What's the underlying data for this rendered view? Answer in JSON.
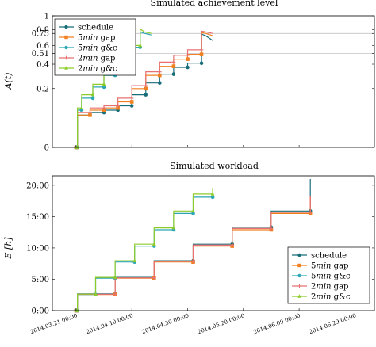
{
  "chart_data": [
    {
      "type": "line",
      "title": "Simulated achievement level",
      "ylabel": "A(t)",
      "ylim": [
        0,
        1
      ],
      "yscale": "sqrt",
      "yticks": [
        "0",
        "0.2",
        "0.4",
        "0.51",
        "0.6",
        "0.75",
        "0.8",
        "1"
      ],
      "ytick_values": [
        0,
        0.2,
        0.4,
        0.51,
        0.6,
        0.75,
        0.8,
        1
      ],
      "reference_lines": [
        0.51,
        0.75
      ],
      "grid": false,
      "legend": "top-left",
      "series": [
        {
          "name": "schedule",
          "color": "#1a6e7a",
          "marker": "circle",
          "points": [
            [
              0.0,
              0
            ],
            [
              0.5,
              0
            ],
            [
              0.5,
              0.06
            ],
            [
              5.0,
              0.06
            ],
            [
              5.0,
              0.07
            ],
            [
              10.0,
              0.07
            ],
            [
              10.0,
              0.08
            ],
            [
              15.0,
              0.08
            ],
            [
              15.0,
              0.1
            ],
            [
              20.0,
              0.1
            ],
            [
              20.0,
              0.16
            ],
            [
              25.0,
              0.16
            ],
            [
              25.0,
              0.24
            ],
            [
              30.0,
              0.24
            ],
            [
              30.0,
              0.31
            ],
            [
              35.0,
              0.31
            ],
            [
              35.0,
              0.37
            ],
            [
              40.0,
              0.37
            ],
            [
              40.0,
              0.41
            ],
            [
              45.0,
              0.41
            ],
            [
              45.0,
              0.74
            ],
            [
              46.5,
              0.72
            ],
            [
              49.0,
              0.66
            ]
          ]
        },
        {
          "name": "5min gap",
          "color": "#f08020",
          "marker": "square",
          "points": [
            [
              0.0,
              0
            ],
            [
              0.5,
              0
            ],
            [
              0.5,
              0.06
            ],
            [
              5.0,
              0.06
            ],
            [
              5.0,
              0.08
            ],
            [
              10.0,
              0.08
            ],
            [
              10.0,
              0.09
            ],
            [
              15.0,
              0.09
            ],
            [
              15.0,
              0.12
            ],
            [
              20.0,
              0.12
            ],
            [
              20.0,
              0.2
            ],
            [
              25.0,
              0.2
            ],
            [
              25.0,
              0.3
            ],
            [
              30.0,
              0.3
            ],
            [
              30.0,
              0.38
            ],
            [
              35.0,
              0.38
            ],
            [
              35.0,
              0.45
            ],
            [
              40.0,
              0.45
            ],
            [
              40.0,
              0.5
            ],
            [
              45.0,
              0.5
            ],
            [
              45.0,
              0.76
            ],
            [
              46.5,
              0.75
            ],
            [
              49.0,
              0.72
            ]
          ]
        },
        {
          "name": "5min g&c",
          "color": "#2aa6b4",
          "marker": "circle",
          "points": [
            [
              0.0,
              0
            ],
            [
              0.5,
              0
            ],
            [
              0.5,
              0.08
            ],
            [
              2.0,
              0.08
            ],
            [
              2.0,
              0.14
            ],
            [
              6.0,
              0.14
            ],
            [
              6.0,
              0.21
            ],
            [
              10.0,
              0.21
            ],
            [
              10.0,
              0.3
            ],
            [
              14.0,
              0.3
            ],
            [
              14.0,
              0.42
            ],
            [
              18.0,
              0.42
            ],
            [
              18.0,
              0.58
            ],
            [
              23.0,
              0.58
            ],
            [
              23.0,
              0.77
            ],
            [
              24.5,
              0.75
            ],
            [
              27.0,
              0.73
            ]
          ]
        },
        {
          "name": "2min gap",
          "color": "#e87070",
          "marker": "cross",
          "points": [
            [
              0.0,
              0
            ],
            [
              0.5,
              0
            ],
            [
              0.5,
              0.07
            ],
            [
              5.0,
              0.07
            ],
            [
              5.0,
              0.09
            ],
            [
              10.0,
              0.09
            ],
            [
              10.0,
              0.1
            ],
            [
              15.0,
              0.1
            ],
            [
              15.0,
              0.14
            ],
            [
              20.0,
              0.14
            ],
            [
              20.0,
              0.22
            ],
            [
              25.0,
              0.22
            ],
            [
              25.0,
              0.33
            ],
            [
              30.0,
              0.33
            ],
            [
              30.0,
              0.42
            ],
            [
              35.0,
              0.42
            ],
            [
              35.0,
              0.49
            ],
            [
              40.0,
              0.49
            ],
            [
              40.0,
              0.55
            ],
            [
              45.0,
              0.55
            ],
            [
              45.0,
              0.78
            ],
            [
              46.5,
              0.77
            ],
            [
              49.0,
              0.75
            ]
          ]
        },
        {
          "name": "2min g&c",
          "color": "#8ccc2a",
          "marker": "triangle",
          "points": [
            [
              0.0,
              0
            ],
            [
              0.5,
              0
            ],
            [
              0.5,
              0.09
            ],
            [
              2.0,
              0.09
            ],
            [
              2.0,
              0.16
            ],
            [
              6.0,
              0.16
            ],
            [
              6.0,
              0.23
            ],
            [
              10.0,
              0.23
            ],
            [
              10.0,
              0.33
            ],
            [
              14.0,
              0.33
            ],
            [
              14.0,
              0.45
            ],
            [
              18.0,
              0.45
            ],
            [
              18.0,
              0.6
            ],
            [
              23.0,
              0.6
            ],
            [
              23.0,
              0.81
            ],
            [
              24.5,
              0.77
            ],
            [
              27.0,
              0.75
            ]
          ]
        }
      ]
    },
    {
      "type": "line",
      "title": "Simulated workload",
      "ylabel": "E [h]",
      "ylim": [
        0,
        21.5
      ],
      "yticks": [
        "0:00",
        "5:00",
        "10:00",
        "15:00",
        "20:00"
      ],
      "ytick_values": [
        0,
        5,
        10,
        15,
        20
      ],
      "grid": false,
      "legend": "bottom-right",
      "x_dates": [
        "2014.03.21 00:00",
        "2014.04.10 00:00",
        "2014.04.30 00:00",
        "2014.05.20 00:00",
        "2014.06.09 00:00",
        "2014.06.29 00:00"
      ],
      "x_date_values": [
        0,
        20,
        40,
        60,
        80,
        100
      ],
      "xlim": [
        -8.5,
        107
      ],
      "series": [
        {
          "name": "schedule",
          "color": "#1a6e7a",
          "marker": "circle",
          "points": [
            [
              0.0,
              0
            ],
            [
              0.5,
              0
            ],
            [
              0.5,
              2.67
            ],
            [
              14.0,
              2.67
            ],
            [
              14.0,
              5.3
            ],
            [
              28.0,
              5.3
            ],
            [
              28.0,
              7.95
            ],
            [
              42.0,
              7.95
            ],
            [
              42.0,
              10.6
            ],
            [
              56.0,
              10.6
            ],
            [
              56.0,
              13.3
            ],
            [
              70.0,
              13.3
            ],
            [
              70.0,
              15.9
            ],
            [
              84.0,
              15.9
            ],
            [
              84.0,
              21.0
            ]
          ]
        },
        {
          "name": "5min gap",
          "color": "#f08020",
          "marker": "square",
          "points": [
            [
              0.0,
              0
            ],
            [
              0.5,
              0
            ],
            [
              0.5,
              2.58
            ],
            [
              14.0,
              2.58
            ],
            [
              14.0,
              5.17
            ],
            [
              28.0,
              5.17
            ],
            [
              28.0,
              7.75
            ],
            [
              42.0,
              7.75
            ],
            [
              42.0,
              10.3
            ],
            [
              56.0,
              10.3
            ],
            [
              56.0,
              12.9
            ],
            [
              70.0,
              12.9
            ],
            [
              70.0,
              15.5
            ],
            [
              84.0,
              15.5
            ],
            [
              84.0,
              18.2
            ]
          ]
        },
        {
          "name": "5min g&c",
          "color": "#2aa6b4",
          "marker": "circle",
          "points": [
            [
              0.0,
              0
            ],
            [
              0.5,
              0
            ],
            [
              0.5,
              2.58
            ],
            [
              7.0,
              2.58
            ],
            [
              7.0,
              5.17
            ],
            [
              14.0,
              5.17
            ],
            [
              14.0,
              7.75
            ],
            [
              21.0,
              7.75
            ],
            [
              21.0,
              10.3
            ],
            [
              28.0,
              10.3
            ],
            [
              28.0,
              12.9
            ],
            [
              35.0,
              12.9
            ],
            [
              35.0,
              15.5
            ],
            [
              42.0,
              15.5
            ],
            [
              42.0,
              18.1
            ],
            [
              49.0,
              18.1
            ]
          ]
        },
        {
          "name": "2min gap",
          "color": "#e87070",
          "marker": "cross",
          "points": [
            [
              0.0,
              0
            ],
            [
              0.5,
              0
            ],
            [
              0.5,
              2.6
            ],
            [
              14.0,
              2.6
            ],
            [
              14.0,
              5.22
            ],
            [
              28.0,
              5.22
            ],
            [
              28.0,
              7.85
            ],
            [
              42.0,
              7.85
            ],
            [
              42.0,
              10.45
            ],
            [
              56.0,
              10.45
            ],
            [
              56.0,
              13.1
            ],
            [
              70.0,
              13.1
            ],
            [
              70.0,
              15.7
            ],
            [
              84.0,
              15.7
            ],
            [
              84.0,
              18.3
            ]
          ]
        },
        {
          "name": "2min g&c",
          "color": "#8ccc2a",
          "marker": "triangle",
          "points": [
            [
              0.0,
              0
            ],
            [
              0.5,
              0
            ],
            [
              0.5,
              2.63
            ],
            [
              7.0,
              2.63
            ],
            [
              7.0,
              5.3
            ],
            [
              14.0,
              5.3
            ],
            [
              14.0,
              7.95
            ],
            [
              21.0,
              7.95
            ],
            [
              21.0,
              10.6
            ],
            [
              28.0,
              10.6
            ],
            [
              28.0,
              13.2
            ],
            [
              35.0,
              13.2
            ],
            [
              35.0,
              15.9
            ],
            [
              42.0,
              15.9
            ],
            [
              42.0,
              18.6
            ],
            [
              49.0,
              18.6
            ],
            [
              49.0,
              19.6
            ]
          ]
        }
      ]
    }
  ]
}
